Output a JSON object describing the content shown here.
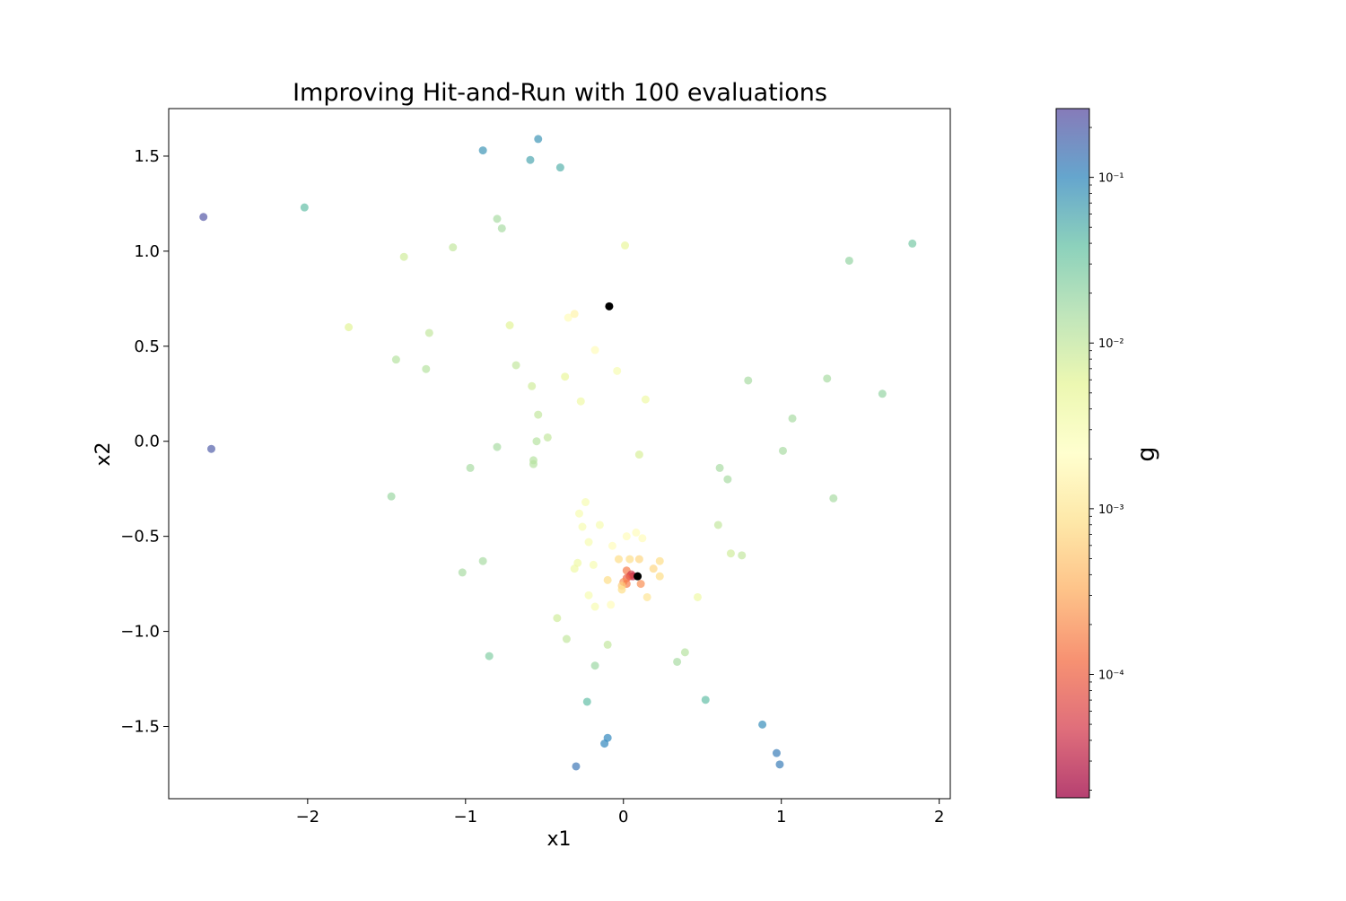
{
  "chart_data": {
    "type": "scatter",
    "title": "Improving Hit-and-Run with 100 evaluations",
    "xlabel": "x1",
    "ylabel": "x2",
    "xlim": [
      -2.88,
      2.07
    ],
    "ylim": [
      -1.88,
      1.75
    ],
    "xticks": [
      -2,
      -1,
      0,
      1,
      2
    ],
    "xtick_labels": [
      "−2",
      "−1",
      "0",
      "1",
      "2"
    ],
    "yticks": [
      -1.5,
      -1.0,
      -0.5,
      0.0,
      0.5,
      1.0,
      1.5
    ],
    "ytick_labels": [
      "−1.5",
      "−1.0",
      "−0.5",
      "0.0",
      "0.5",
      "1.0",
      "1.5"
    ],
    "grid": false,
    "colorbar": {
      "label": "g",
      "scale": "log",
      "colormap": "Spectral",
      "range": [
        1.8e-05,
        0.26
      ],
      "ticks": [
        {
          "value": 0.1,
          "label": "10⁻¹"
        },
        {
          "value": 0.01,
          "label": "10⁻²"
        },
        {
          "value": 0.001,
          "label": "10⁻³"
        },
        {
          "value": 0.0001,
          "label": "10⁻⁴"
        }
      ]
    },
    "points": [
      {
        "x": -2.66,
        "y": 1.18,
        "g": 0.22
      },
      {
        "x": -2.61,
        "y": -0.04,
        "g": 0.2
      },
      {
        "x": -2.02,
        "y": 1.23,
        "g": 0.04
      },
      {
        "x": -0.89,
        "y": 1.53,
        "g": 0.08
      },
      {
        "x": -0.54,
        "y": 1.59,
        "g": 0.08
      },
      {
        "x": -0.59,
        "y": 1.48,
        "g": 0.06
      },
      {
        "x": -0.4,
        "y": 1.44,
        "g": 0.05
      },
      {
        "x": -0.8,
        "y": 1.17,
        "g": 0.015
      },
      {
        "x": -0.77,
        "y": 1.12,
        "g": 0.015
      },
      {
        "x": -1.08,
        "y": 1.02,
        "g": 0.01
      },
      {
        "x": -1.39,
        "y": 0.97,
        "g": 0.008
      },
      {
        "x": 0.01,
        "y": 1.03,
        "g": 0.005
      },
      {
        "x": 1.43,
        "y": 0.95,
        "g": 0.02
      },
      {
        "x": 1.83,
        "y": 1.04,
        "g": 0.03
      },
      {
        "x": -1.74,
        "y": 0.6,
        "g": 0.006
      },
      {
        "x": -1.23,
        "y": 0.57,
        "g": 0.01
      },
      {
        "x": -0.72,
        "y": 0.61,
        "g": 0.006
      },
      {
        "x": -0.35,
        "y": 0.65,
        "g": 0.002
      },
      {
        "x": -0.31,
        "y": 0.67,
        "g": 0.0015
      },
      {
        "x": -0.18,
        "y": 0.48,
        "g": 0.002
      },
      {
        "x": -1.44,
        "y": 0.43,
        "g": 0.012
      },
      {
        "x": -1.25,
        "y": 0.38,
        "g": 0.012
      },
      {
        "x": -0.68,
        "y": 0.4,
        "g": 0.01
      },
      {
        "x": -0.37,
        "y": 0.34,
        "g": 0.005
      },
      {
        "x": -0.04,
        "y": 0.37,
        "g": 0.003
      },
      {
        "x": -0.58,
        "y": 0.29,
        "g": 0.008
      },
      {
        "x": -0.27,
        "y": 0.21,
        "g": 0.004
      },
      {
        "x": 0.14,
        "y": 0.22,
        "g": 0.004
      },
      {
        "x": 0.79,
        "y": 0.32,
        "g": 0.015
      },
      {
        "x": 1.29,
        "y": 0.33,
        "g": 0.015
      },
      {
        "x": 1.64,
        "y": 0.25,
        "g": 0.02
      },
      {
        "x": -0.54,
        "y": 0.14,
        "g": 0.01
      },
      {
        "x": 1.07,
        "y": 0.12,
        "g": 0.015
      },
      {
        "x": -0.55,
        "y": 0.0,
        "g": 0.012
      },
      {
        "x": -0.48,
        "y": 0.02,
        "g": 0.01
      },
      {
        "x": -0.8,
        "y": -0.03,
        "g": 0.015
      },
      {
        "x": 1.01,
        "y": -0.05,
        "g": 0.015
      },
      {
        "x": 0.1,
        "y": -0.07,
        "g": 0.007
      },
      {
        "x": -0.57,
        "y": -0.1,
        "g": 0.012
      },
      {
        "x": -0.57,
        "y": -0.12,
        "g": 0.012
      },
      {
        "x": -0.97,
        "y": -0.14,
        "g": 0.015
      },
      {
        "x": 0.61,
        "y": -0.14,
        "g": 0.015
      },
      {
        "x": 0.66,
        "y": -0.2,
        "g": 0.015
      },
      {
        "x": -1.47,
        "y": -0.29,
        "g": 0.018
      },
      {
        "x": 1.33,
        "y": -0.3,
        "g": 0.015
      },
      {
        "x": -0.24,
        "y": -0.32,
        "g": 0.003
      },
      {
        "x": -0.28,
        "y": -0.38,
        "g": 0.003
      },
      {
        "x": -0.26,
        "y": -0.45,
        "g": 0.003
      },
      {
        "x": -0.15,
        "y": -0.44,
        "g": 0.003
      },
      {
        "x": 0.6,
        "y": -0.44,
        "g": 0.01
      },
      {
        "x": 0.08,
        "y": -0.48,
        "g": 0.002
      },
      {
        "x": 0.02,
        "y": -0.5,
        "g": 0.002
      },
      {
        "x": 0.12,
        "y": -0.51,
        "g": 0.002
      },
      {
        "x": -0.22,
        "y": -0.53,
        "g": 0.003
      },
      {
        "x": -0.07,
        "y": -0.55,
        "g": 0.002
      },
      {
        "x": 0.68,
        "y": -0.59,
        "g": 0.008
      },
      {
        "x": 0.75,
        "y": -0.6,
        "g": 0.01
      },
      {
        "x": -0.03,
        "y": -0.62,
        "g": 0.0008
      },
      {
        "x": 0.04,
        "y": -0.62,
        "g": 0.0008
      },
      {
        "x": 0.1,
        "y": -0.62,
        "g": 0.0007
      },
      {
        "x": 0.23,
        "y": -0.63,
        "g": 0.0008
      },
      {
        "x": -0.89,
        "y": -0.63,
        "g": 0.015
      },
      {
        "x": -0.29,
        "y": -0.64,
        "g": 0.004
      },
      {
        "x": -0.19,
        "y": -0.65,
        "g": 0.003
      },
      {
        "x": -0.31,
        "y": -0.67,
        "g": 0.004
      },
      {
        "x": 0.19,
        "y": -0.67,
        "g": 0.0007
      },
      {
        "x": 0.02,
        "y": -0.68,
        "g": 0.00015
      },
      {
        "x": 0.05,
        "y": -0.7,
        "g": 5e-05
      },
      {
        "x": 0.06,
        "y": -0.71,
        "g": 3e-05
      },
      {
        "x": 0.04,
        "y": -0.71,
        "g": 6e-05
      },
      {
        "x": 0.02,
        "y": -0.72,
        "g": 0.0001
      },
      {
        "x": 0.0,
        "y": -0.74,
        "g": 0.0002
      },
      {
        "x": 0.02,
        "y": -0.75,
        "g": 0.00015
      },
      {
        "x": 0.23,
        "y": -0.71,
        "g": 0.0008
      },
      {
        "x": -0.1,
        "y": -0.73,
        "g": 0.0008
      },
      {
        "x": 0.11,
        "y": -0.75,
        "g": 0.0002
      },
      {
        "x": -0.01,
        "y": -0.76,
        "g": 0.0006
      },
      {
        "x": -0.01,
        "y": -0.78,
        "g": 0.0008
      },
      {
        "x": -1.02,
        "y": -0.69,
        "g": 0.015
      },
      {
        "x": -0.22,
        "y": -0.81,
        "g": 0.003
      },
      {
        "x": 0.15,
        "y": -0.82,
        "g": 0.001
      },
      {
        "x": 0.47,
        "y": -0.82,
        "g": 0.004
      },
      {
        "x": -0.08,
        "y": -0.86,
        "g": 0.002
      },
      {
        "x": -0.18,
        "y": -0.87,
        "g": 0.003
      },
      {
        "x": -0.42,
        "y": -0.93,
        "g": 0.008
      },
      {
        "x": -0.36,
        "y": -1.04,
        "g": 0.01
      },
      {
        "x": -0.1,
        "y": -1.07,
        "g": 0.01
      },
      {
        "x": 0.39,
        "y": -1.11,
        "g": 0.012
      },
      {
        "x": -0.85,
        "y": -1.13,
        "g": 0.025
      },
      {
        "x": 0.34,
        "y": -1.16,
        "g": 0.015
      },
      {
        "x": -0.18,
        "y": -1.18,
        "g": 0.018
      },
      {
        "x": -0.23,
        "y": -1.37,
        "g": 0.04
      },
      {
        "x": 0.52,
        "y": -1.36,
        "g": 0.04
      },
      {
        "x": 0.88,
        "y": -1.49,
        "g": 0.09
      },
      {
        "x": -0.1,
        "y": -1.56,
        "g": 0.1
      },
      {
        "x": -0.12,
        "y": -1.59,
        "g": 0.1
      },
      {
        "x": 0.97,
        "y": -1.64,
        "g": 0.12
      },
      {
        "x": 0.99,
        "y": -1.7,
        "g": 0.12
      },
      {
        "x": -0.3,
        "y": -1.71,
        "g": 0.13
      }
    ],
    "highlight_points": [
      {
        "x": -0.09,
        "y": 0.71,
        "color": "#000000"
      },
      {
        "x": 0.09,
        "y": -0.71,
        "color": "#000000"
      }
    ]
  }
}
